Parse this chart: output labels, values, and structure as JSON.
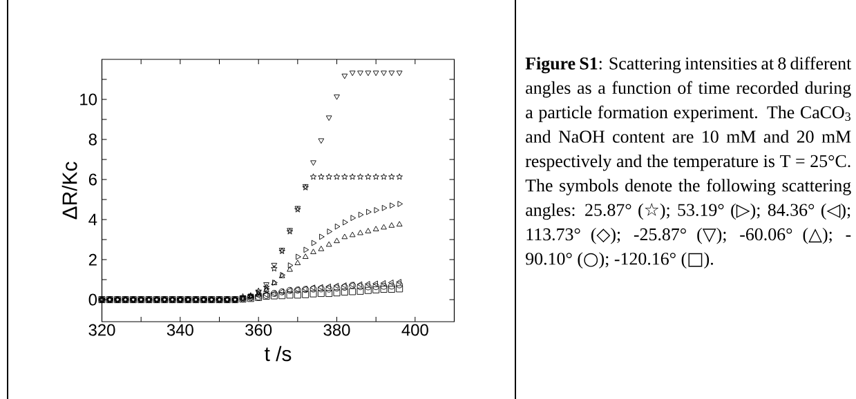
{
  "chart_data": {
    "type": "scatter",
    "xlabel": "t /s",
    "ylabel": "ΔR/Kc",
    "x": [
      320,
      322,
      324,
      326,
      328,
      330,
      332,
      334,
      336,
      338,
      340,
      342,
      344,
      346,
      348,
      350,
      352,
      354,
      356,
      358,
      360,
      362,
      364,
      366,
      368,
      370,
      372,
      374,
      376,
      378,
      380,
      382,
      384,
      386,
      388,
      390,
      392,
      394,
      396
    ],
    "xlim": [
      320,
      410
    ],
    "ylim": [
      -1.1,
      12
    ],
    "xticks": [
      320,
      {
        "value": 330,
        "label": null
      },
      340,
      {
        "value": 350,
        "label": null
      },
      360,
      {
        "value": 370,
        "label": null
      },
      380,
      {
        "value": 390,
        "label": null
      },
      400
    ],
    "yticks": [
      0,
      {
        "value": 1,
        "label": null
      },
      2,
      {
        "value": 3,
        "label": null
      },
      4,
      {
        "value": 5,
        "label": null
      },
      6,
      {
        "value": 7,
        "label": null
      },
      8,
      {
        "value": 9,
        "label": null
      },
      10,
      {
        "value": 11,
        "label": null
      }
    ],
    "series": [
      {
        "color": "#000000",
        "values": [
          0,
          0,
          0,
          0,
          0,
          0,
          0,
          0,
          0,
          0,
          0,
          0,
          0,
          0,
          0,
          0,
          0,
          0,
          0.15,
          0.2,
          0.43,
          0.62,
          1.55,
          2.42,
          3.4,
          4.5,
          5.6,
          6.13,
          6.13,
          6.13,
          6.13,
          6.13,
          6.13,
          6.13,
          6.13,
          6.13,
          6.13,
          6.13,
          6.13
        ]
      },
      {
        "color": "#000000",
        "values": [
          0,
          0,
          0,
          0,
          0,
          0,
          0,
          0,
          0,
          0,
          0,
          0,
          0,
          0,
          0,
          0,
          0,
          0,
          0.05,
          0.15,
          0.31,
          0.54,
          0.85,
          1.23,
          1.71,
          2.14,
          2.49,
          2.83,
          3.14,
          3.4,
          3.65,
          3.86,
          4.08,
          4.24,
          4.38,
          4.47,
          4.58,
          4.7,
          4.78
        ]
      },
      {
        "color": "#000000",
        "values": [
          0,
          0,
          0,
          0,
          0,
          0,
          0,
          0,
          0,
          0,
          0,
          0,
          0,
          0,
          0,
          0,
          0,
          0,
          0.05,
          0.1,
          0.2,
          0.25,
          0.31,
          0.39,
          0.46,
          0.51,
          0.54,
          0.6,
          0.62,
          0.65,
          0.69,
          0.71,
          0.74,
          0.76,
          0.78,
          0.8,
          0.82,
          0.85,
          0.88
        ]
      },
      {
        "color": "#000000",
        "values": [
          0,
          0,
          0,
          0,
          0,
          0,
          0,
          0,
          0,
          0,
          0,
          0,
          0,
          0,
          0,
          0,
          0,
          0,
          0.1,
          0.2,
          0.37,
          0.77,
          1.74,
          2.49,
          3.48,
          4.58,
          5.67,
          6.86,
          7.96,
          9.1,
          10.15,
          11.19,
          11.34,
          11.34,
          11.34,
          11.34,
          11.34,
          11.34,
          11.34
        ]
      },
      {
        "color": "#000000",
        "values": [
          0,
          0,
          0,
          0,
          0,
          0,
          0,
          0,
          0,
          0,
          0,
          0,
          0,
          0,
          0,
          0,
          0,
          0,
          0.05,
          0.15,
          0.25,
          0.48,
          0.82,
          1.17,
          1.49,
          1.82,
          2.13,
          2.37,
          2.52,
          2.74,
          2.92,
          3.12,
          3.22,
          3.32,
          3.41,
          3.51,
          3.6,
          3.69,
          3.75
        ]
      },
      {
        "color": "#000000",
        "values": [
          0,
          0,
          0,
          0,
          0,
          0,
          0,
          0,
          0,
          0,
          0,
          0,
          0,
          0,
          0,
          0,
          0,
          0,
          0.05,
          0.1,
          0.13,
          0.21,
          0.31,
          0.39,
          0.46,
          0.48,
          0.51,
          0.53,
          0.54,
          0.53,
          0.58,
          0.62,
          0.71,
          0.65,
          0.64,
          0.65,
          0.67,
          0.68,
          0.74
        ]
      },
      {
        "color": "#000000",
        "values": [
          0,
          0,
          0,
          0,
          0,
          0,
          0,
          0,
          0,
          0,
          0,
          0,
          0,
          0,
          0,
          0,
          0,
          0,
          0.03,
          0.06,
          0.11,
          0.17,
          0.19,
          0.2,
          0.23,
          0.23,
          0.25,
          0.29,
          0.31,
          0.31,
          0.34,
          0.38,
          0.4,
          0.42,
          0.46,
          0.49,
          0.52,
          0.52,
          0.54
        ]
      }
    ],
    "annotations": [
      "**Figure S1**: Scattering intensities at 8 different angles as a function of time recorded during a particle formation experiment. The CaCO$_{3}$ and NaOH content are 10 mM and 20 mM respectively and the temperature is T = 25°C. The symbols denote the following scattering angles: 25.87° (☆); 53.19° (▷); 84.36° (◁); 113.73° (◇); -25.87° (▽); -60.06° (△); -90.10° (○); -120.16° (□)."
    ]
  }
}
